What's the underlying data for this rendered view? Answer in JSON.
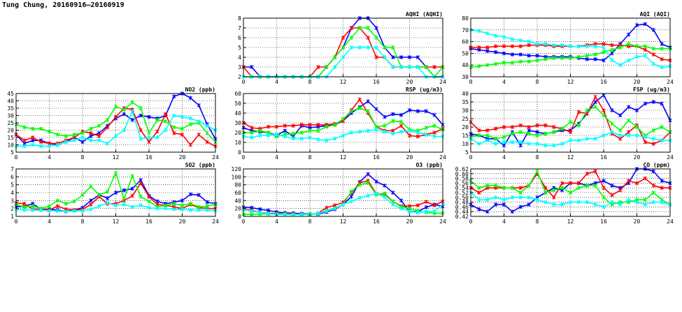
{
  "page": {
    "title": "Tung Chung, 20160916–20160919"
  },
  "colors": {
    "blue": "#0000ff",
    "red": "#ff0000",
    "green": "#00ff00",
    "cyan": "#00ffff"
  },
  "chart_data": [
    {
      "type": "line",
      "title": "AQHI (AQHI)",
      "xlim": [
        0,
        24
      ],
      "xticks": [
        0,
        4,
        8,
        12,
        16,
        20,
        24
      ],
      "ylim": [
        2,
        8
      ],
      "yticks": [
        2,
        3,
        4,
        5,
        6,
        7,
        8
      ],
      "grid": true,
      "series": [
        {
          "color": "blue",
          "values": [
            3,
            3,
            2,
            2,
            2,
            2,
            2,
            2,
            2,
            2,
            3,
            4,
            5,
            7,
            8,
            8,
            7,
            5,
            4,
            4,
            4,
            4,
            3,
            2,
            2
          ]
        },
        {
          "color": "red",
          "values": [
            3,
            2,
            2,
            2,
            2,
            2,
            2,
            2,
            2,
            3,
            3,
            4,
            6,
            7,
            7,
            6,
            4,
            4,
            3,
            3,
            3,
            3,
            3,
            3,
            3
          ]
        },
        {
          "color": "green",
          "values": [
            2,
            2,
            2,
            2,
            2,
            2,
            2,
            2,
            2,
            2,
            3,
            4,
            5,
            6,
            7,
            7,
            6,
            5,
            5,
            3,
            3,
            3,
            3,
            2,
            3
          ]
        },
        {
          "color": "cyan",
          "values": [
            2,
            2,
            2,
            2,
            2,
            2,
            2,
            2,
            2,
            2,
            2,
            3,
            4,
            5,
            5,
            5,
            5,
            4,
            3,
            3,
            3,
            3,
            2,
            2,
            2
          ]
        }
      ]
    },
    {
      "type": "line",
      "title": "AQI (AQI)",
      "xlim": [
        0,
        24
      ],
      "xticks": [
        0,
        4,
        8,
        12,
        16,
        20,
        24
      ],
      "ylim": [
        30,
        80
      ],
      "yticks": [
        30,
        40,
        50,
        60,
        70,
        80
      ],
      "grid": true,
      "series": [
        {
          "color": "blue",
          "values": [
            54,
            53,
            52,
            51,
            50,
            49,
            49,
            48,
            48,
            47,
            47,
            47,
            47,
            46,
            45,
            45,
            44,
            50,
            58,
            66,
            74,
            75,
            70,
            58,
            55
          ]
        },
        {
          "color": "red",
          "values": [
            55,
            55,
            55,
            56,
            56,
            56,
            56,
            57,
            57,
            57,
            56,
            56,
            56,
            56,
            57,
            58,
            58,
            57,
            57,
            56,
            56,
            53,
            49,
            45,
            44
          ]
        },
        {
          "color": "green",
          "values": [
            38,
            39,
            40,
            41,
            42,
            42,
            43,
            43,
            44,
            45,
            46,
            46,
            46,
            47,
            48,
            49,
            51,
            53,
            55,
            58,
            56,
            56,
            54,
            54,
            54
          ]
        },
        {
          "color": "cyan",
          "values": [
            70,
            69,
            67,
            65,
            64,
            62,
            61,
            60,
            58,
            58,
            57,
            57,
            56,
            56,
            56,
            56,
            55,
            44,
            40,
            44,
            47,
            48,
            41,
            38,
            39
          ]
        }
      ]
    },
    {
      "type": "line",
      "title": "NO2 (ppb)",
      "xlim": [
        0,
        24
      ],
      "xticks": [
        0,
        4,
        8,
        12,
        16,
        20,
        24
      ],
      "ylim": [
        5,
        45
      ],
      "yticks": [
        5,
        10,
        15,
        20,
        25,
        30,
        35,
        40,
        45
      ],
      "grid": true,
      "series": [
        {
          "color": "blue",
          "values": [
            17,
            11,
            13,
            13,
            11,
            10,
            12,
            15,
            12,
            16,
            18,
            23,
            28,
            31,
            27,
            30,
            29,
            28,
            30,
            43,
            45,
            42,
            37,
            24,
            14
          ]
        },
        {
          "color": "red",
          "values": [
            17,
            13,
            15,
            12,
            11,
            11,
            13,
            15,
            19,
            18,
            16,
            22,
            29,
            35,
            34,
            20,
            12,
            19,
            31,
            18,
            17,
            10,
            17,
            12,
            9
          ]
        },
        {
          "color": "green",
          "values": [
            24,
            22,
            21,
            21,
            19,
            17,
            16,
            17,
            18,
            21,
            23,
            27,
            36,
            34,
            39,
            35,
            18,
            27,
            26,
            22,
            21,
            24,
            25,
            18,
            12
          ]
        },
        {
          "color": "cyan",
          "values": [
            9,
            9,
            10,
            9,
            9,
            10,
            12,
            13,
            15,
            13,
            13,
            11,
            16,
            20,
            33,
            14,
            15,
            15,
            20,
            30,
            29,
            28,
            26,
            23,
            20
          ]
        }
      ]
    },
    {
      "type": "line",
      "title": "RSP (ug/m3)",
      "xlim": [
        0,
        24
      ],
      "xticks": [
        0,
        4,
        8,
        12,
        16,
        20,
        24
      ],
      "ylim": [
        0,
        60
      ],
      "yticks": [
        0,
        10,
        20,
        30,
        40,
        50,
        60
      ],
      "grid": true,
      "series": [
        {
          "color": "blue",
          "values": [
            25,
            22,
            21,
            20,
            17,
            22,
            16,
            27,
            25,
            26,
            27,
            28,
            32,
            40,
            46,
            52,
            44,
            36,
            39,
            38,
            43,
            42,
            42,
            38,
            28
          ]
        },
        {
          "color": "red",
          "values": [
            30,
            25,
            24,
            26,
            26,
            27,
            27,
            28,
            28,
            28,
            28,
            29,
            32,
            43,
            54,
            40,
            26,
            22,
            22,
            27,
            17,
            16,
            18,
            20,
            24
          ]
        },
        {
          "color": "green",
          "values": [
            20,
            20,
            22,
            20,
            16,
            18,
            19,
            20,
            22,
            22,
            26,
            28,
            34,
            42,
            45,
            42,
            26,
            27,
            32,
            31,
            23,
            22,
            25,
            27,
            23
          ]
        },
        {
          "color": "cyan",
          "values": [
            16,
            15,
            17,
            17,
            18,
            16,
            14,
            14,
            15,
            13,
            12,
            14,
            17,
            20,
            21,
            22,
            23,
            21,
            19,
            21,
            22,
            20,
            18,
            16,
            16
          ]
        }
      ]
    },
    {
      "type": "line",
      "title": "FSP (ug/m3)",
      "xlim": [
        0,
        24
      ],
      "xticks": [
        0,
        4,
        8,
        12,
        16,
        20,
        24
      ],
      "ylim": [
        5,
        40
      ],
      "yticks": [
        5,
        10,
        15,
        20,
        25,
        30,
        35,
        40
      ],
      "grid": true,
      "series": [
        {
          "color": "blue",
          "values": [
            16,
            15,
            13,
            13,
            9,
            17,
            9,
            18,
            17,
            16,
            17,
            18,
            18,
            22,
            28,
            35,
            39,
            30,
            27,
            32,
            30,
            34,
            35,
            34,
            24
          ]
        },
        {
          "color": "red",
          "values": [
            23,
            18,
            18,
            19,
            20,
            20,
            21,
            20,
            21,
            21,
            20,
            19,
            17,
            29,
            28,
            38,
            30,
            16,
            13,
            17,
            21,
            11,
            10,
            12,
            17
          ]
        },
        {
          "color": "green",
          "values": [
            14,
            15,
            15,
            13,
            14,
            16,
            17,
            16,
            15,
            16,
            17,
            19,
            23,
            21,
            30,
            32,
            27,
            22,
            18,
            24,
            20,
            15,
            18,
            20,
            17
          ]
        },
        {
          "color": "cyan",
          "values": [
            13,
            10,
            12,
            10,
            11,
            11,
            11,
            10,
            10,
            9,
            9,
            10,
            12,
            12,
            13,
            13,
            15,
            17,
            15,
            15,
            15,
            14,
            13,
            12,
            12
          ]
        }
      ]
    },
    {
      "type": "line",
      "title": "SO2 (ppb)",
      "xlim": [
        0,
        24
      ],
      "xticks": [
        0,
        4,
        8,
        12,
        16,
        20,
        24
      ],
      "ylim": [
        1,
        7
      ],
      "yticks": [
        1,
        2,
        3,
        4,
        5,
        6,
        7
      ],
      "grid": true,
      "series": [
        {
          "color": "blue",
          "values": [
            2.2,
            2.3,
            2.6,
            1.9,
            1.9,
            1.8,
            1.6,
            1.8,
            2.1,
            3,
            3.7,
            3.3,
            4,
            4.3,
            4.5,
            5.6,
            3.6,
            2.9,
            2.6,
            2.8,
            3,
            3.8,
            3.7,
            2.8,
            2.6
          ]
        },
        {
          "color": "red",
          "values": [
            2.7,
            2.6,
            1.9,
            1.9,
            1.8,
            2.3,
            1.9,
            1.8,
            1.9,
            2.5,
            3.5,
            2.6,
            2.6,
            3,
            3.6,
            5.2,
            3.5,
            2.5,
            2.4,
            2.2,
            2,
            2.5,
            2.1,
            2,
            2
          ]
        },
        {
          "color": "green",
          "values": [
            2.5,
            2.2,
            2.3,
            2,
            2.3,
            3,
            2.6,
            2.9,
            3.7,
            4.8,
            3.7,
            4.1,
            6.5,
            3.2,
            6.1,
            3.5,
            2.9,
            2.2,
            2.4,
            2.6,
            2.4,
            2.6,
            2.2,
            2.3,
            2.5
          ]
        },
        {
          "color": "cyan",
          "values": [
            1.9,
            1.8,
            1.8,
            1.8,
            1.7,
            1.7,
            1.6,
            1.7,
            1.7,
            1.9,
            2.3,
            2.7,
            2.4,
            2.5,
            2.2,
            2.4,
            2.1,
            2,
            2,
            1.9,
            1.9,
            1.8,
            1.8,
            1.8,
            1.7
          ]
        }
      ]
    },
    {
      "type": "line",
      "title": "O3 (ppb)",
      "xlim": [
        0,
        24
      ],
      "xticks": [
        0,
        4,
        8,
        12,
        16,
        20,
        24
      ],
      "ylim": [
        0,
        120
      ],
      "yticks": [
        0,
        20,
        40,
        60,
        80,
        100,
        120
      ],
      "grid": true,
      "series": [
        {
          "color": "blue",
          "values": [
            23,
            22,
            18,
            15,
            11,
            9,
            8,
            7,
            6,
            6,
            11,
            18,
            30,
            50,
            87,
            107,
            88,
            78,
            60,
            40,
            12,
            12,
            23,
            30,
            25
          ]
        },
        {
          "color": "red",
          "values": [
            18,
            15,
            10,
            8,
            7,
            7,
            6,
            5,
            5,
            8,
            22,
            28,
            35,
            60,
            85,
            90,
            57,
            55,
            38,
            26,
            26,
            28,
            37,
            28,
            38
          ]
        },
        {
          "color": "green",
          "values": [
            5,
            5,
            6,
            6,
            6,
            6,
            5,
            5,
            6,
            7,
            14,
            20,
            30,
            63,
            80,
            85,
            55,
            58,
            38,
            24,
            20,
            14,
            10,
            8,
            8
          ]
        },
        {
          "color": "cyan",
          "values": [
            17,
            13,
            10,
            7,
            5,
            5,
            4,
            5,
            4,
            8,
            13,
            20,
            30,
            38,
            47,
            52,
            58,
            48,
            30,
            20,
            12,
            10,
            12,
            13,
            30
          ]
        }
      ]
    },
    {
      "type": "line",
      "title": "CO (ppm)",
      "xlim": [
        0,
        24
      ],
      "xticks": [
        0,
        4,
        8,
        12,
        16,
        20,
        24
      ],
      "ylim": [
        0.42,
        0.62
      ],
      "yticks": [
        0.42,
        0.44,
        0.46,
        0.48,
        0.5,
        0.52,
        0.54,
        0.56,
        0.58,
        0.6,
        0.62
      ],
      "grid": true,
      "series": [
        {
          "color": "blue",
          "values": [
            0.47,
            0.45,
            0.44,
            0.47,
            0.47,
            0.44,
            0.46,
            0.47,
            0.5,
            0.52,
            0.54,
            0.53,
            0.56,
            0.56,
            0.55,
            0.56,
            0.57,
            0.55,
            0.54,
            0.56,
            0.62,
            0.62,
            0.61,
            0.57,
            0.56
          ]
        },
        {
          "color": "red",
          "values": [
            0.54,
            0.52,
            0.54,
            0.54,
            0.54,
            0.54,
            0.54,
            0.55,
            0.6,
            0.54,
            0.5,
            0.56,
            0.56,
            0.56,
            0.6,
            0.61,
            0.54,
            0.51,
            0.53,
            0.57,
            0.56,
            0.58,
            0.55,
            0.54,
            0.54
          ]
        },
        {
          "color": "green",
          "values": [
            0.57,
            0.54,
            0.55,
            0.55,
            0.54,
            0.54,
            0.52,
            0.55,
            0.61,
            0.52,
            0.53,
            0.54,
            0.52,
            0.54,
            0.55,
            0.55,
            0.5,
            0.47,
            0.48,
            0.48,
            0.49,
            0.49,
            0.52,
            0.49,
            0.47
          ]
        },
        {
          "color": "cyan",
          "values": [
            0.52,
            0.49,
            0.49,
            0.5,
            0.49,
            0.5,
            0.5,
            0.5,
            0.49,
            0.48,
            0.47,
            0.47,
            0.48,
            0.48,
            0.48,
            0.47,
            0.46,
            0.48,
            0.47,
            0.49,
            0.48,
            0.47,
            0.48,
            0.48,
            0.47
          ]
        }
      ]
    }
  ]
}
